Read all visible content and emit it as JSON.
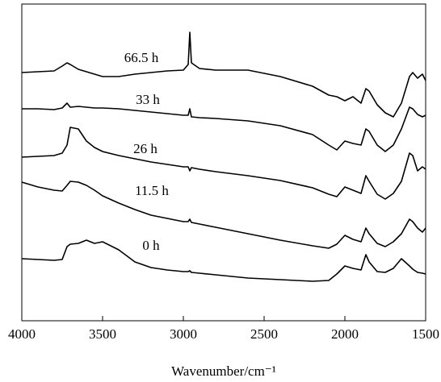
{
  "chart_data": {
    "type": "line",
    "xlabel": "Wavenumber/cm⁻¹",
    "xlim": [
      4000,
      1500
    ],
    "xticks": [
      4000,
      3500,
      3000,
      2500,
      2000,
      1500
    ],
    "ylim": [
      0,
      393
    ],
    "x": [
      4000,
      3900,
      3800,
      3750,
      3720,
      3700,
      3650,
      3600,
      3550,
      3500,
      3400,
      3300,
      3200,
      3100,
      3000,
      2970,
      2960,
      2950,
      2900,
      2800,
      2600,
      2400,
      2200,
      2100,
      2050,
      2000,
      1950,
      1900,
      1870,
      1850,
      1800,
      1750,
      1700,
      1650,
      1600,
      1580,
      1550,
      1520,
      1500
    ],
    "series": [
      {
        "name": "0 h",
        "color": "#000000",
        "values": [
          77,
          76,
          75,
          76,
          92,
          95,
          96,
          100,
          96,
          98,
          88,
          73,
          66,
          63,
          61,
          61,
          62,
          60,
          59,
          57,
          53,
          51,
          49,
          50,
          58,
          68,
          65,
          63,
          82,
          73,
          61,
          60,
          65,
          77,
          68,
          64,
          60,
          59,
          58
        ]
      },
      {
        "name": "11.5 h",
        "color": "#000000",
        "values": [
          172,
          166,
          162,
          161,
          168,
          173,
          172,
          168,
          162,
          155,
          146,
          138,
          131,
          127,
          123,
          123,
          126,
          122,
          120,
          116,
          108,
          100,
          93,
          90,
          95,
          106,
          101,
          98,
          115,
          108,
          96,
          92,
          98,
          108,
          126,
          123,
          115,
          110,
          115
        ]
      },
      {
        "name": "26 h",
        "color": "#000000",
        "values": [
          203,
          204,
          205,
          208,
          218,
          240,
          238,
          223,
          215,
          210,
          205,
          201,
          197,
          194,
          191,
          191,
          186,
          190,
          188,
          185,
          180,
          174,
          165,
          157,
          154,
          166,
          162,
          158,
          180,
          173,
          157,
          151,
          158,
          173,
          208,
          205,
          186,
          191,
          188
        ]
      },
      {
        "name": "33 h",
        "color": "#000000",
        "values": [
          263,
          263,
          262,
          264,
          270,
          265,
          266,
          265,
          264,
          264,
          263,
          261,
          259,
          257,
          255,
          255,
          263,
          253,
          252,
          251,
          248,
          242,
          231,
          218,
          212,
          223,
          220,
          218,
          238,
          235,
          218,
          210,
          218,
          238,
          265,
          263,
          256,
          253,
          255
        ]
      },
      {
        "name": "66.5 h",
        "color": "#000000",
        "values": [
          308,
          309,
          310,
          316,
          320,
          318,
          312,
          309,
          306,
          303,
          303,
          306,
          308,
          310,
          311,
          318,
          358,
          320,
          313,
          311,
          311,
          303,
          291,
          280,
          278,
          273,
          278,
          270,
          288,
          285,
          268,
          258,
          253,
          270,
          303,
          308,
          301,
          306,
          298
        ]
      }
    ]
  }
}
